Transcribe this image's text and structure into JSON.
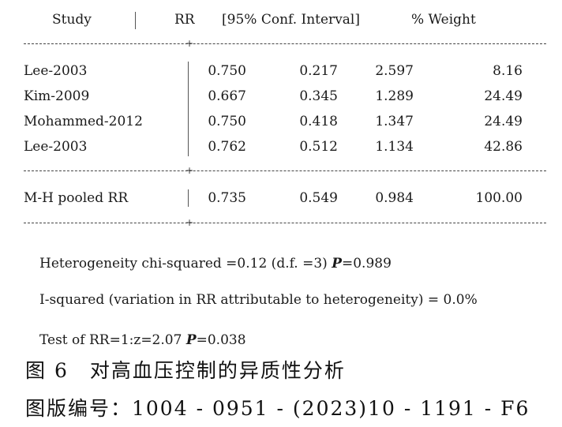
{
  "header": {
    "study": "Study",
    "rr": "RR",
    "ci": "[95% Conf. Interval]",
    "weight": "% Weight"
  },
  "rows": [
    {
      "study": "Lee-2003",
      "rr": "0.750",
      "ci_low": "0.217",
      "ci_high": "2.597",
      "weight": "8.16"
    },
    {
      "study": "Kim-2009",
      "rr": "0.667",
      "ci_low": "0.345",
      "ci_high": "1.289",
      "weight": "24.49"
    },
    {
      "study": "Mohammed-2012",
      "rr": "0.750",
      "ci_low": "0.418",
      "ci_high": "1.347",
      "weight": "24.49"
    },
    {
      "study": "Lee-2003",
      "rr": "0.762",
      "ci_low": "0.512",
      "ci_high": "1.134",
      "weight": "42.86"
    }
  ],
  "pooled": {
    "study": "M-H pooled RR",
    "rr": "0.735",
    "ci_low": "0.549",
    "ci_high": "0.984",
    "weight": "100.00"
  },
  "heterogeneity": {
    "text": "Heterogeneity chi-squared =0.12 (d.f. =3) ",
    "p_label": "P",
    "p_value": "=0.989"
  },
  "i_squared": "I-squared (variation in RR attributable to heterogeneity) = 0.0%",
  "test": {
    "text": "Test of RR=1:z=2.07 ",
    "p_label": "P",
    "p_value": "=0.038"
  },
  "caption": {
    "figure": "图 6　对高血压控制的异质性分析",
    "figure_number": "图版编号：1004 - 0951 - (2023)10 - 1191 - F6"
  }
}
